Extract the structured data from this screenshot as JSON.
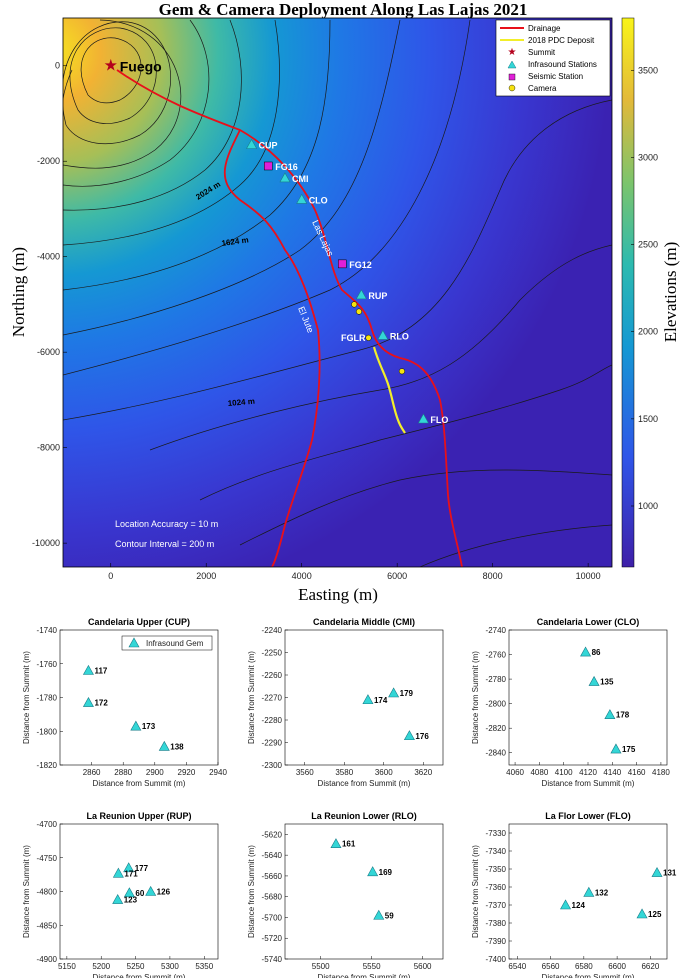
{
  "main_map": {
    "title": "Gem & Camera Deployment Along Las Lajas 2021",
    "xlabel": "Easting (m)",
    "ylabel": "Northing (m)",
    "colorbar_label": "Elevations (m)",
    "x_ticks": [
      "0",
      "2000",
      "4000",
      "6000",
      "8000",
      "10000"
    ],
    "y_ticks": [
      "0",
      "-2000",
      "-4000",
      "-6000",
      "-8000",
      "-10000"
    ],
    "colorbar_ticks": [
      "3500",
      "3000",
      "2500",
      "2000",
      "1500",
      "1000"
    ],
    "legend": [
      "Drainage",
      "2018 PDC Deposit",
      "Summit",
      "Infrasound Stations",
      "Seismic Station",
      "Camera"
    ],
    "notes": [
      "Location Accuracy = 10 m",
      "Contour Interval = 200 m"
    ],
    "contour_labels": [
      "2024 m",
      "1624 m",
      "1024 m"
    ],
    "drainage_labels": [
      "Las Lajas",
      "El Jute"
    ],
    "summit_label": "Fuego",
    "colors": {
      "drainage": "#e8101a",
      "pdc": "#f2ee2a",
      "infrasound": "#33d6d6",
      "seismic": "#e020d8",
      "camera": "#f5e20f",
      "summit": "#b4001c"
    }
  },
  "chart_data": [
    {
      "type": "scatter",
      "title": "Gem & Camera Deployment Along Las Lajas 2021",
      "xlabel": "Easting (m)",
      "ylabel": "Northing (m)",
      "xlim": [
        -1000,
        10500
      ],
      "ylim": [
        -10500,
        1000
      ],
      "series": [
        {
          "name": "Summit",
          "points": [
            {
              "label": "Fuego",
              "x": 0,
              "y": 0
            }
          ]
        },
        {
          "name": "Infrasound Stations",
          "points": [
            {
              "label": "CUP",
              "x": 2950,
              "y": -1650
            },
            {
              "label": "CMI",
              "x": 3650,
              "y": -2350
            },
            {
              "label": "CLO",
              "x": 4000,
              "y": -2800
            },
            {
              "label": "RUP",
              "x": 5250,
              "y": -4800
            },
            {
              "label": "RLO",
              "x": 5700,
              "y": -5650
            },
            {
              "label": "FLO",
              "x": 6550,
              "y": -7400
            }
          ]
        },
        {
          "name": "Seismic Station",
          "points": [
            {
              "label": "FG16",
              "x": 3300,
              "y": -2100
            },
            {
              "label": "FG12",
              "x": 4850,
              "y": -4150
            }
          ]
        },
        {
          "name": "Camera",
          "points": [
            {
              "label": "",
              "x": 5100,
              "y": -5000
            },
            {
              "label": "",
              "x": 5200,
              "y": -5150
            },
            {
              "label": "FGLR",
              "x": 5400,
              "y": -5700
            },
            {
              "label": "",
              "x": 6100,
              "y": -6400
            }
          ]
        }
      ],
      "colorbar": {
        "label": "Elevations (m)",
        "range": [
          650,
          3800
        ]
      }
    },
    {
      "type": "scatter",
      "title": "Candelaria Upper (CUP)",
      "xlabel": "Distance from Summit (m)",
      "ylabel": "Distance from Summit (m)",
      "xlim": [
        2840,
        2940
      ],
      "ylim": [
        -1820,
        -1740
      ],
      "x_ticks": [
        2860,
        2880,
        2900,
        2920,
        2940
      ],
      "y_ticks": [
        -1740,
        -1760,
        -1780,
        -1800,
        -1820
      ],
      "legend": "Infrasound Gem",
      "points": [
        {
          "label": "117",
          "x": 2858,
          "y": -1764
        },
        {
          "label": "172",
          "x": 2858,
          "y": -1783
        },
        {
          "label": "173",
          "x": 2888,
          "y": -1797
        },
        {
          "label": "138",
          "x": 2906,
          "y": -1809
        }
      ]
    },
    {
      "type": "scatter",
      "title": "Candelaria Middle (CMI)",
      "xlabel": "Distance from Summit (m)",
      "ylabel": "Distance from Summit (m)",
      "xlim": [
        3550,
        3630
      ],
      "ylim": [
        -2300,
        -2240
      ],
      "x_ticks": [
        3560,
        3580,
        3600,
        3620
      ],
      "y_ticks": [
        -2240,
        -2250,
        -2260,
        -2270,
        -2280,
        -2290,
        -2300
      ],
      "points": [
        {
          "label": "174",
          "x": 3592,
          "y": -2271
        },
        {
          "label": "179",
          "x": 3605,
          "y": -2268
        },
        {
          "label": "176",
          "x": 3613,
          "y": -2287
        }
      ]
    },
    {
      "type": "scatter",
      "title": "Candelaria Lower (CLO)",
      "xlabel": "Distance from Summit (m)",
      "ylabel": "Distance from Summit (m)",
      "xlim": [
        4055,
        4185
      ],
      "ylim": [
        -2850,
        -2740
      ],
      "x_ticks": [
        4060,
        4080,
        4100,
        4120,
        4140,
        4160,
        4180
      ],
      "y_ticks": [
        -2740,
        -2760,
        -2780,
        -2800,
        -2820,
        -2840
      ],
      "points": [
        {
          "label": "86",
          "x": 4118,
          "y": -2758
        },
        {
          "label": "135",
          "x": 4125,
          "y": -2782
        },
        {
          "label": "178",
          "x": 4138,
          "y": -2809
        },
        {
          "label": "175",
          "x": 4143,
          "y": -2837
        }
      ]
    },
    {
      "type": "scatter",
      "title": "La Reunion Upper (RUP)",
      "xlabel": "Distance from Summit (m)",
      "ylabel": "Distance from Summit (m)",
      "xlim": [
        5140,
        5370
      ],
      "ylim": [
        -4900,
        -4700
      ],
      "x_ticks": [
        5150,
        5200,
        5250,
        5300,
        5350
      ],
      "y_ticks": [
        -4700,
        -4750,
        -4800,
        -4850,
        -4900
      ],
      "points": [
        {
          "label": "177",
          "x": 5240,
          "y": -4765
        },
        {
          "label": "171",
          "x": 5225,
          "y": -4773
        },
        {
          "label": "60",
          "x": 5241,
          "y": -4802
        },
        {
          "label": "126",
          "x": 5272,
          "y": -4800
        },
        {
          "label": "123",
          "x": 5224,
          "y": -4812
        }
      ]
    },
    {
      "type": "scatter",
      "title": "La Reunion Lower (RLO)",
      "xlabel": "Distance from Summit (m)",
      "ylabel": "Distance from Summit (m)",
      "xlim": [
        5465,
        5620
      ],
      "ylim": [
        -5740,
        -5610
      ],
      "x_ticks": [
        5500,
        5550,
        5600
      ],
      "y_ticks": [
        -5620,
        -5640,
        -5660,
        -5680,
        -5700,
        -5720,
        -5740
      ],
      "points": [
        {
          "label": "161",
          "x": 5515,
          "y": -5629
        },
        {
          "label": "169",
          "x": 5551,
          "y": -5656
        },
        {
          "label": "59",
          "x": 5557,
          "y": -5698
        }
      ]
    },
    {
      "type": "scatter",
      "title": "La Flor Lower (FLO)",
      "xlabel": "Distance from Summit (m)",
      "ylabel": "Distance from Summit (m)",
      "xlim": [
        6535,
        6630
      ],
      "ylim": [
        -7400,
        -7325
      ],
      "x_ticks": [
        6540,
        6560,
        6580,
        6600,
        6620
      ],
      "y_ticks": [
        -7330,
        -7340,
        -7350,
        -7360,
        -7370,
        -7380,
        -7390,
        -7400
      ],
      "points": [
        {
          "label": "131",
          "x": 6624,
          "y": -7352
        },
        {
          "label": "132",
          "x": 6583,
          "y": -7363
        },
        {
          "label": "124",
          "x": 6569,
          "y": -7370
        },
        {
          "label": "125",
          "x": 6615,
          "y": -7375
        }
      ]
    }
  ]
}
